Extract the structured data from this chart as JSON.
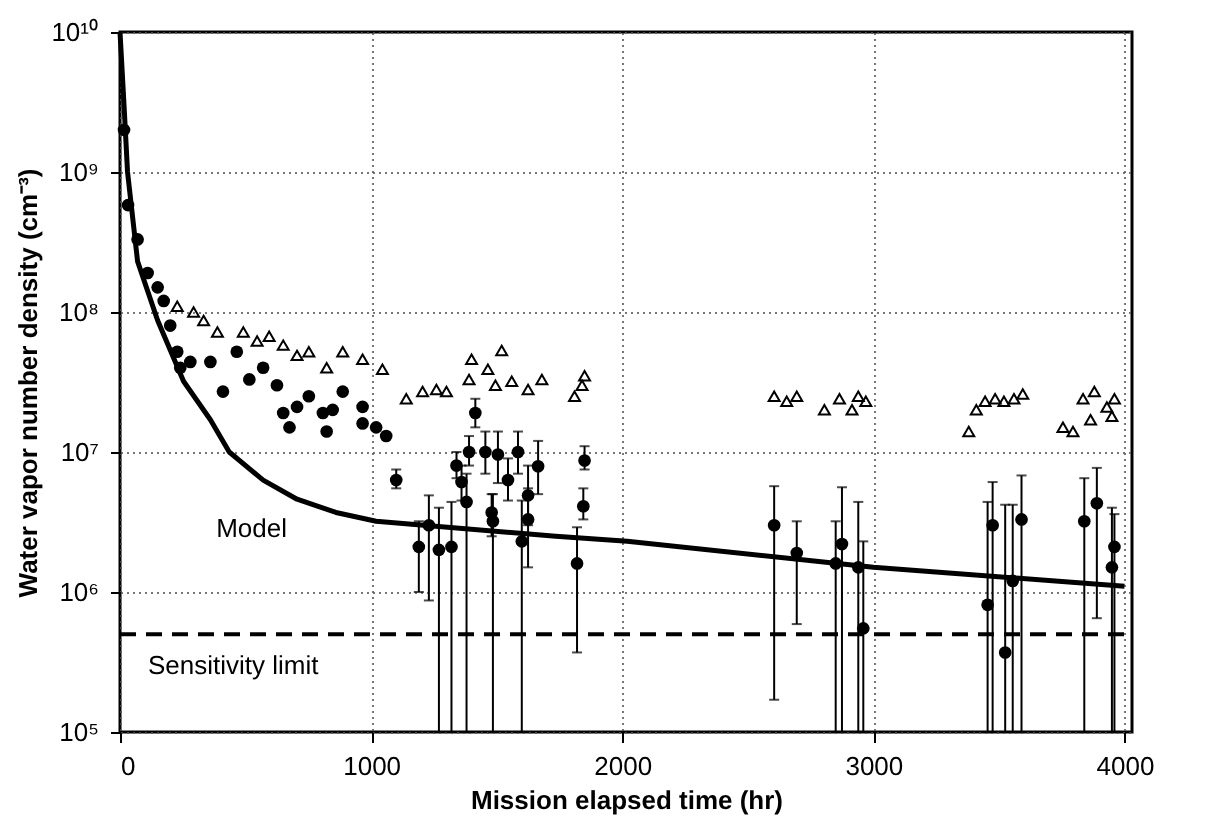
{
  "chart_data": {
    "type": "scatter",
    "xlabel": "Mission elapsed time (hr)",
    "ylabel": "Water vapor number density (cm⁻³)",
    "log": "y",
    "grid": true,
    "xlim": [
      0,
      4030
    ],
    "xticks": [
      0,
      1000,
      2000,
      3000,
      4000
    ],
    "ylim": [
      100000,
      10000000000
    ],
    "yticks": [
      {
        "value": 100000,
        "label": "10⁵"
      },
      {
        "value": 1000000,
        "label": "10⁶"
      },
      {
        "value": 10000000,
        "label": "10⁷"
      },
      {
        "value": 100000000,
        "label": "10⁸"
      },
      {
        "value": 1000000000,
        "label": "10⁹"
      },
      {
        "value": 10000000000,
        "label": "10¹⁰"
      }
    ],
    "ref_lines": [
      {
        "axis": "y",
        "value": 500000,
        "label": "Sensitivity limit",
        "color": "#000000",
        "line_style": "dashed"
      }
    ],
    "annotations": [
      "Model"
    ],
    "series": [
      {
        "type": "line",
        "color": "#000000",
        "marker": "none",
        "line_style": "solid",
        "x": [
          0,
          16,
          30,
          70,
          150,
          253,
          360,
          435,
          570,
          705,
          860,
          1020,
          1735,
          2020,
          3000,
          4000
        ],
        "values": [
          10000000000,
          3000000000,
          1000000000,
          230000000,
          87000000,
          32000000,
          17000000,
          10000000,
          6300000,
          4600000,
          3700000,
          3200000,
          2500000,
          2300000,
          1500000,
          1100000
        ]
      },
      {
        "color": "#000000",
        "marker": "circle",
        "x": [
          16,
          32,
          70,
          110,
          150,
          174,
          200,
          228,
          240,
          280,
          360,
          410,
          465,
          515,
          570,
          625,
          650,
          675,
          705,
          752,
          808,
          823,
          847,
          887,
          966,
          966,
          1020,
          1060,
          1100,
          1190,
          1230,
          1270,
          1320,
          1340,
          1360,
          1380,
          1390,
          1415,
          1455,
          1480,
          1485,
          1505,
          1545,
          1585,
          1600,
          1625,
          1625,
          1665,
          1820,
          1845,
          1850,
          2605,
          2695,
          2850,
          2875,
          2940,
          2960,
          3455,
          3475,
          3525,
          3555,
          3590,
          3840,
          3890,
          3950,
          3960
        ],
        "values": [
          2000000000,
          580000000,
          330000000,
          190000000,
          150000000,
          120000000,
          80000000,
          52000000,
          40000000,
          44000000,
          44000000,
          27000000,
          52000000,
          33000000,
          40000000,
          30000000,
          19000000,
          15000000,
          21000000,
          25000000,
          19000000,
          14000000,
          20000000,
          27000000,
          21000000,
          16000000,
          15000000,
          13000000,
          6300000,
          2100000,
          3000000,
          2000000,
          2100000,
          8000000,
          6100000,
          4400000,
          10000000,
          19000000,
          10000000,
          3700000,
          3200000,
          9600000,
          6300000,
          10000000,
          2300000,
          3300000,
          4900000,
          7900000,
          1600000,
          4100000,
          8700000,
          3000000,
          1900000,
          1600000,
          2200000,
          1500000,
          550000,
          810000,
          3000000,
          370000,
          1200000,
          3300000,
          3200000,
          4300000,
          1500000,
          2100000
        ],
        "errors": [
          null,
          null,
          null,
          null,
          null,
          null,
          null,
          null,
          null,
          null,
          null,
          null,
          null,
          null,
          null,
          null,
          null,
          null,
          null,
          null,
          null,
          null,
          null,
          null,
          null,
          null,
          null,
          null,
          [
            5500000,
            7500000
          ],
          [
            1000000,
            3200000
          ],
          [
            870000,
            4900000
          ],
          [
            100000,
            4000000
          ],
          [
            100000,
            4400000
          ],
          [
            6500000,
            10000000
          ],
          [
            4500000,
            8000000
          ],
          [
            100000,
            7000000
          ],
          [
            8000000,
            13000000
          ],
          [
            15000000,
            24000000
          ],
          [
            7000000,
            14000000
          ],
          [
            2500000,
            5000000
          ],
          [
            100000,
            5000000
          ],
          [
            6000000,
            14000000
          ],
          [
            4500000,
            9000000
          ],
          [
            7000000,
            14000000
          ],
          [
            100000,
            4500000
          ],
          [
            1500000,
            5500000
          ],
          [
            3000000,
            8000000
          ],
          [
            5000000,
            12000000
          ],
          [
            370000,
            2900000
          ],
          [
            3300000,
            5500000
          ],
          [
            7500000,
            11000000
          ],
          [
            170000,
            5700000
          ],
          [
            590000,
            3200000
          ],
          [
            100000,
            3200000
          ],
          [
            100000,
            5600000
          ],
          [
            100000,
            4400000
          ],
          [
            100000,
            2300000
          ],
          [
            100000,
            4400000
          ],
          [
            100000,
            6100000
          ],
          [
            100000,
            4200000
          ],
          [
            100000,
            4200000
          ],
          [
            100000,
            6800000
          ],
          [
            100000,
            6500000
          ],
          [
            650000,
            7700000
          ],
          [
            100000,
            4000000
          ],
          [
            100000,
            3600000
          ]
        ]
      },
      {
        "color": "#000000",
        "marker": "triangle",
        "x": [
          228,
          293,
          333,
          388,
          491,
          546,
          594,
          650,
          705,
          752,
          823,
          887,
          966,
          1045,
          1140,
          1205,
          1260,
          1300,
          1390,
          1400,
          1465,
          1495,
          1520,
          1560,
          1625,
          1680,
          1810,
          1840,
          1850,
          2605,
          2655,
          2695,
          2805,
          2865,
          2915,
          2940,
          2970,
          3380,
          3410,
          3445,
          3485,
          3520,
          3560,
          3595,
          3755,
          3795,
          3835,
          3865,
          3880,
          3930,
          3950,
          3960
        ],
        "values": [
          110000000,
          100000000,
          87000000,
          72000000,
          72000000,
          62000000,
          67000000,
          58000000,
          49000000,
          52000000,
          40000000,
          52000000,
          46000000,
          39000000,
          24000000,
          27000000,
          28000000,
          27000000,
          33000000,
          46000000,
          39000000,
          30000000,
          53000000,
          32000000,
          28000000,
          33000000,
          25000000,
          30000000,
          35000000,
          25000000,
          23000000,
          25000000,
          20000000,
          24000000,
          20000000,
          25000000,
          23000000,
          14000000,
          20000000,
          23000000,
          24000000,
          23000000,
          24000000,
          26000000,
          15000000,
          14000000,
          24000000,
          17000000,
          27000000,
          21000000,
          18000000,
          24000000
        ]
      }
    ]
  }
}
